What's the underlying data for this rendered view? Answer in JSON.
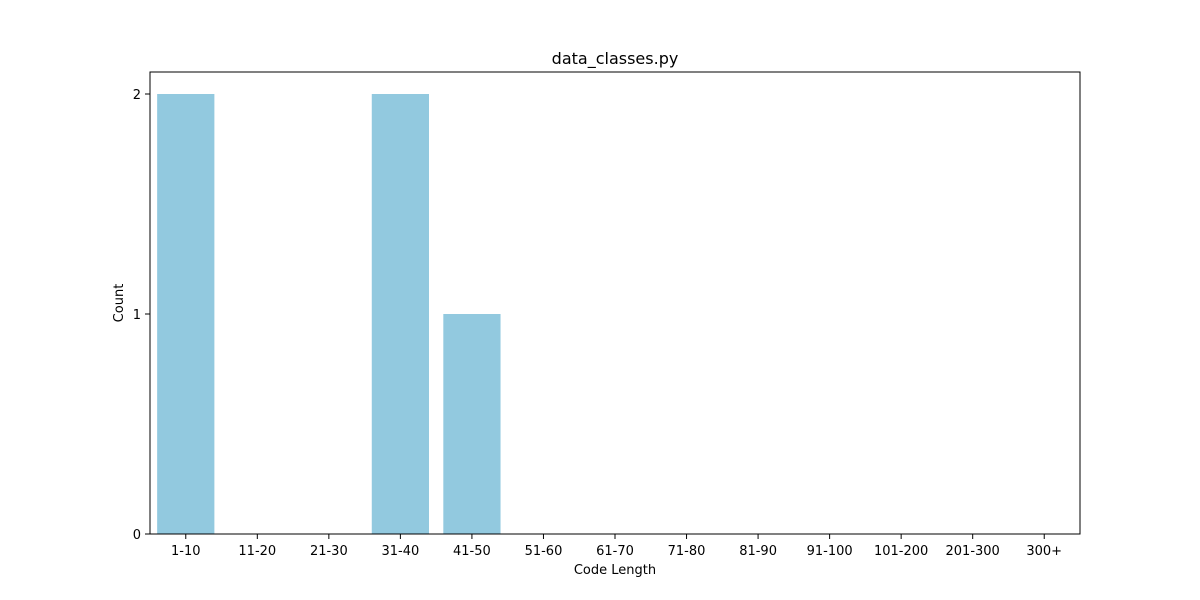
{
  "chart_data": {
    "type": "bar",
    "title": "data_classes.py",
    "xlabel": "Code Length",
    "ylabel": "Count",
    "categories": [
      "1-10",
      "11-20",
      "21-30",
      "31-40",
      "41-50",
      "51-60",
      "61-70",
      "71-80",
      "81-90",
      "91-100",
      "101-200",
      "201-300",
      "300+"
    ],
    "values": [
      2,
      0,
      0,
      2,
      1,
      0,
      0,
      0,
      0,
      0,
      0,
      0,
      0
    ],
    "ylim": [
      0,
      2.1
    ],
    "yticks": [
      0,
      1,
      2
    ],
    "grid": false,
    "legend": false,
    "bar_color": "#92c9df"
  }
}
